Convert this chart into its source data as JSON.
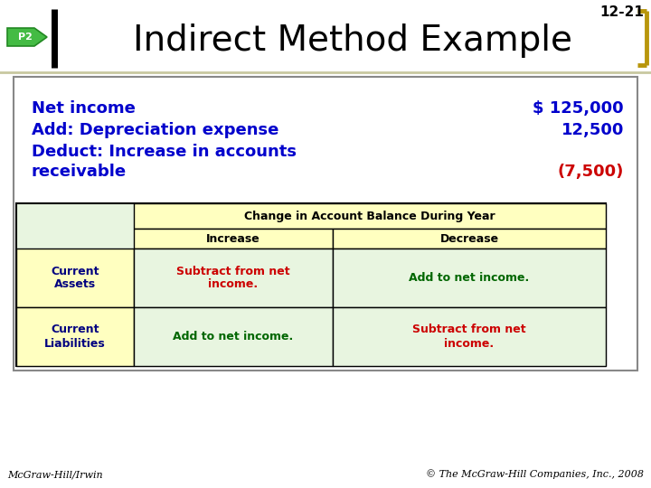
{
  "slide_num": "12-21",
  "p2_label": "P2",
  "title": "Indirect Method Example",
  "bg_color": "#ffffff",
  "title_color": "#000000",
  "bracket_color": "#b8960c",
  "line_items": [
    {
      "label": "Net income",
      "value": "$ 125,000",
      "label_color": "#0000cc",
      "value_color": "#0000cc"
    },
    {
      "label": "Add: Depreciation expense",
      "value": "12,500",
      "label_color": "#0000cc",
      "value_color": "#0000cc"
    },
    {
      "label_line1": "Deduct: Increase in accounts",
      "label_line2": "receivable",
      "value": "(7,500)",
      "label_color": "#0000cc",
      "value_color": "#cc0000"
    }
  ],
  "table": {
    "header": "Change in Account Balance During Year",
    "col1": "Increase",
    "col2": "Decrease",
    "rows": [
      {
        "row_label": "Current\nAssets",
        "row_label_color": "#000080",
        "col1_text": "Subtract from net\nincome.",
        "col1_color": "#cc0000",
        "col2_text": "Add to net income.",
        "col2_color": "#006600"
      },
      {
        "row_label": "Current\nLiabilities",
        "row_label_color": "#000080",
        "col1_text": "Add to net income.",
        "col1_color": "#006600",
        "col2_text": "Subtract from net\nincome.",
        "col2_color": "#cc0000"
      }
    ],
    "table_bg": "#e8f5e0",
    "header_bg": "#ffffc0",
    "border_color": "#000000"
  },
  "footer_left": "McGraw-Hill/Irwin",
  "footer_right": "© The McGraw-Hill Companies, Inc., 2008",
  "separator_color": "#c8c8a0",
  "content_border_color": "#888888"
}
